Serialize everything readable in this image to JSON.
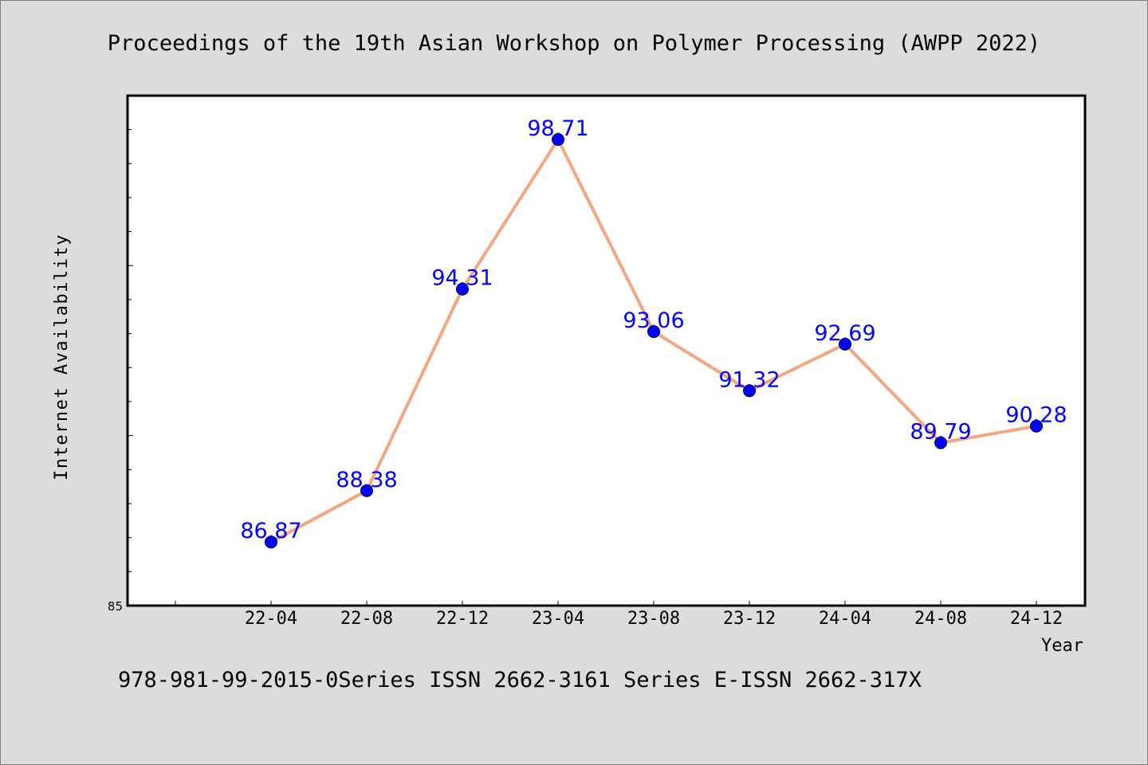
{
  "page": {
    "title": "Proceedings of the 19th Asian Workshop on Polymer Processing (AWPP 2022)",
    "footer": "978-981-99-2015-0Series ISSN 2662-3161 Series E-ISSN 2662-317X"
  },
  "colors": {
    "background": "#dcdcdc",
    "plot_background": "#ffffff",
    "line": "#f4a582",
    "marker": "#0000ff",
    "data_label": "#0000ff",
    "axis": "#000000"
  },
  "chart_data": {
    "type": "line",
    "title": "Proceedings of the 19th Asian Workshop on Polymer Processing (AWPP 2022)",
    "xlabel": "Year",
    "ylabel": "Internet Availability",
    "categories": [
      "22-04",
      "22-08",
      "22-12",
      "23-04",
      "23-08",
      "23-12",
      "24-04",
      "24-08",
      "24-12"
    ],
    "values": [
      86.87,
      88.38,
      94.31,
      98.71,
      93.06,
      91.32,
      92.69,
      89.79,
      90.28
    ],
    "data_labels": [
      "86.87",
      "88.38",
      "94.31",
      "98.71",
      "93.06",
      "91.32",
      "92.69",
      "89.79",
      "90.28"
    ],
    "y_tick_labels": [
      "85"
    ],
    "ylim": [
      85,
      100
    ],
    "y_minor_tick_step": 1,
    "grid": false,
    "legend": "none"
  }
}
